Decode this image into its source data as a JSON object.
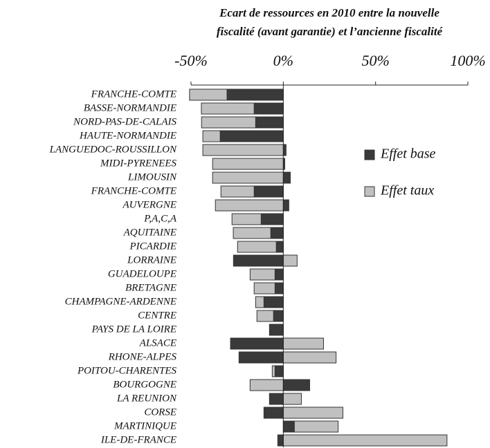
{
  "chart_data": {
    "type": "stacked-barh",
    "title": [
      "Ecart de ressources en 2010 entre la nouvelle",
      "fiscalité (avant garantie) et l’ancienne fiscalité"
    ],
    "categories": [
      "FRANCHE-COMTE",
      "BASSE-NORMANDIE",
      "NORD-PAS-DE-CALAIS",
      "HAUTE-NORMANDIE",
      "LANGUEDOC-ROUSSILLON",
      "MIDI-PYRENEES",
      "LIMOUSIN",
      "FRANCHE-COMTE",
      "AUVERGNE",
      "P,A,C,A",
      "AQUITAINE",
      "PICARDIE",
      "LORRAINE",
      "GUADELOUPE",
      "BRETAGNE",
      "CHAMPAGNE-ARDENNE",
      "CENTRE",
      "PAYS DE LA LOIRE",
      "ALSACE",
      "RHONE-ALPES",
      "POITOU-CHARENTES",
      "BOURGOGNE",
      "LA REUNION",
      "CORSE",
      "MARTINIQUE",
      "ILE-DE-FRANCE"
    ],
    "series": [
      {
        "name": "Effet base",
        "color": "#3a3a3a",
        "values": [
          -30.5,
          -15.8,
          -15,
          -34.2,
          1.5,
          0.8,
          3.8,
          -15.8,
          3,
          -12,
          -6.8,
          -3.8,
          -27,
          -4.5,
          -4.5,
          -10.5,
          -5.3,
          -7.5,
          -28.6,
          -24,
          -4.5,
          14.3,
          -7.5,
          -10.5,
          6,
          -3
        ]
      },
      {
        "name": "Effet taux",
        "color": "#c0c0c0",
        "values": [
          -20.3,
          -28.6,
          -29.3,
          -9.4,
          -43.6,
          -38.3,
          -38.3,
          -18,
          -36.8,
          -15.8,
          -20.3,
          -21,
          7.5,
          -13.5,
          -11.3,
          -4.5,
          -9,
          0,
          21.8,
          28.6,
          -1.5,
          -18,
          9.8,
          32.3,
          23.7,
          88.7
        ]
      }
    ],
    "xlim": [
      -50,
      100
    ],
    "xticks": [
      {
        "value": -50,
        "label": "-50%"
      },
      {
        "value": 0,
        "label": "0%"
      },
      {
        "value": 50,
        "label": "50%"
      },
      {
        "value": 100,
        "label": "100%"
      }
    ]
  }
}
